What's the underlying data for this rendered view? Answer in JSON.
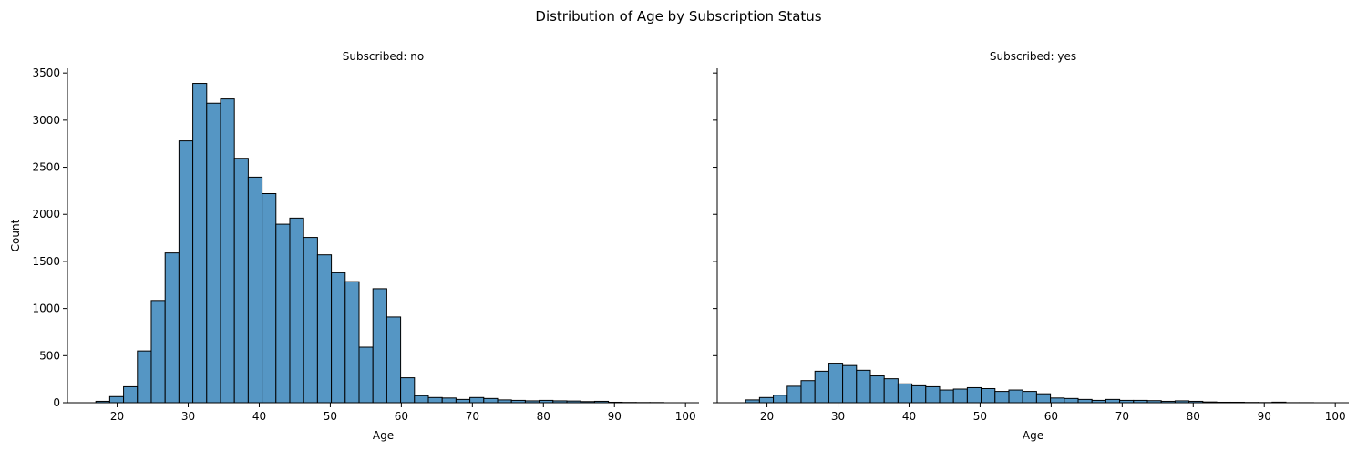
{
  "suptitle": "Distribution of Age by Subscription Status",
  "chart_data": [
    {
      "type": "bar",
      "title": "Subscribed: no",
      "xlabel": "Age",
      "ylabel": "Count",
      "xlim": [
        13.0,
        101.9
      ],
      "ylim": [
        0,
        3550
      ],
      "xticks": [
        20,
        30,
        40,
        50,
        60,
        70,
        80,
        90,
        100
      ],
      "yticks": [
        0,
        500,
        1000,
        1500,
        2000,
        2500,
        3000,
        3500
      ],
      "bin_start": 17,
      "bin_width": 1.95,
      "values": [
        15,
        65,
        170,
        550,
        1085,
        1590,
        2780,
        3390,
        3180,
        3225,
        2595,
        2395,
        2220,
        1895,
        1960,
        1755,
        1570,
        1380,
        1285,
        590,
        1210,
        910,
        265,
        75,
        55,
        50,
        35,
        55,
        45,
        30,
        25,
        20,
        25,
        20,
        18,
        12,
        15,
        5,
        3,
        2,
        2
      ],
      "color": "#5596c4",
      "edgecolor": "#000000"
    },
    {
      "type": "bar",
      "title": "Subscribed: yes",
      "xlabel": "Age",
      "ylabel": "",
      "xlim": [
        13.0,
        101.9
      ],
      "ylim": [
        0,
        3550
      ],
      "xticks": [
        20,
        30,
        40,
        50,
        60,
        70,
        80,
        90,
        100
      ],
      "yticks": [
        0,
        500,
        1000,
        1500,
        2000,
        2500,
        3000,
        3500
      ],
      "show_ytick_labels": false,
      "bin_start": 17,
      "bin_width": 1.95,
      "values": [
        30,
        55,
        80,
        175,
        235,
        335,
        420,
        395,
        345,
        285,
        255,
        200,
        180,
        170,
        135,
        145,
        160,
        150,
        120,
        135,
        120,
        95,
        50,
        45,
        35,
        25,
        35,
        25,
        25,
        22,
        15,
        20,
        15,
        8,
        5,
        5,
        3,
        2,
        6,
        1,
        1
      ],
      "color": "#5596c4",
      "edgecolor": "#000000"
    }
  ]
}
